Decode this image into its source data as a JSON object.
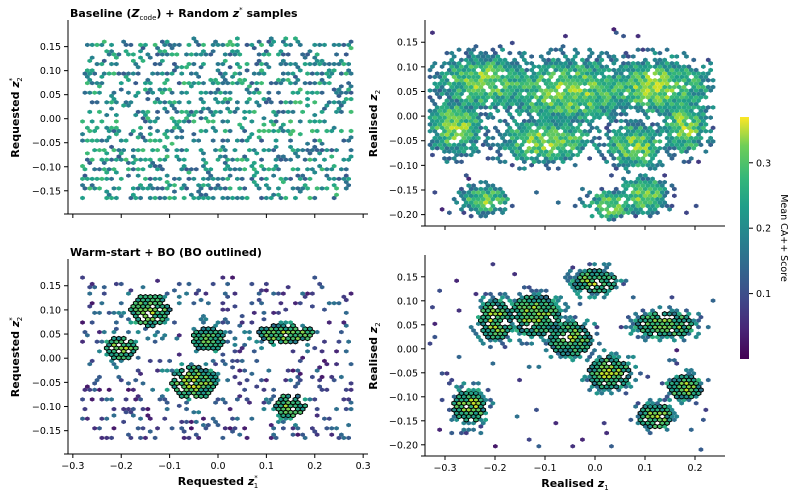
{
  "figure": {
    "colorbar": {
      "label": "Mean CA++ Score",
      "range": [
        0.0,
        0.37
      ],
      "ticks": [
        0.1,
        0.2,
        0.3
      ],
      "tick_labels": [
        "0.1",
        "0.2",
        "0.3"
      ],
      "colormap": "viridis"
    }
  },
  "chart_data": [
    {
      "id": "top-left",
      "type": "heatmap",
      "subtype": "hexbin",
      "title": "Baseline (Z_code) + Random z* samples",
      "title_parts": {
        "prefix": "Baseline (",
        "var": "Z",
        "sub": "code",
        "mid": ") + Random ",
        "var2": "z",
        "sup": "*",
        "suffix": " samples"
      },
      "xlabel": "",
      "ylabel": "Requested z2*",
      "ylabel_parts": {
        "base": "Requested ",
        "var": "z",
        "sub": "2",
        "sup": "*"
      },
      "xlim": [
        -0.31,
        0.31
      ],
      "ylim": [
        -0.19,
        0.195
      ],
      "xticks": [
        -0.3,
        -0.2,
        -0.1,
        0.0,
        0.1,
        0.2,
        0.3
      ],
      "xtick_labels_shown": false,
      "yticks": [
        -0.15,
        -0.1,
        -0.05,
        0.0,
        0.05,
        0.1,
        0.15
      ],
      "ytick_labels": [
        "−0.15",
        "−0.10",
        "−0.05",
        "0.00",
        "0.05",
        "0.10",
        "0.15"
      ],
      "distribution": "sparse grid of hexagonal bins over x∈[-0.28,0.28], y∈[-0.16,0.17]; mean score mostly 0.05–0.25",
      "bo_outlined": false
    },
    {
      "id": "top-right",
      "type": "heatmap",
      "subtype": "hexbin",
      "title": "",
      "xlabel": "",
      "ylabel": "Realised z2",
      "ylabel_parts": {
        "base": "Realised ",
        "var": "z",
        "sub": "2"
      },
      "xlim": [
        -0.34,
        0.26
      ],
      "ylim": [
        -0.215,
        0.185
      ],
      "xticks": [
        -0.3,
        -0.2,
        -0.1,
        0.0,
        0.1,
        0.2
      ],
      "xtick_labels_shown": false,
      "yticks": [
        -0.2,
        -0.15,
        -0.1,
        -0.05,
        0.0,
        0.05,
        0.1,
        0.15
      ],
      "ytick_labels": [
        "−0.20",
        "−0.15",
        "−0.10",
        "−0.05",
        "0.00",
        "0.05",
        "0.10",
        "0.15"
      ],
      "distribution": "dense blob of realised points spanning x∈[-0.33,0.24], y∈[-0.21,0.18]",
      "bo_outlined": false
    },
    {
      "id": "bottom-left",
      "type": "heatmap",
      "subtype": "hexbin",
      "title": "Warm-start + BO (BO outlined)",
      "xlabel": "Requested z1*",
      "xlabel_parts": {
        "base": "Requested ",
        "var": "z",
        "sub": "1",
        "sup": "*"
      },
      "ylabel": "Requested z2*",
      "ylabel_parts": {
        "base": "Requested ",
        "var": "z",
        "sub": "2",
        "sup": "*"
      },
      "xlim": [
        -0.31,
        0.31
      ],
      "ylim": [
        -0.19,
        0.195
      ],
      "xticks": [
        -0.3,
        -0.2,
        -0.1,
        0.0,
        0.1,
        0.2,
        0.3
      ],
      "xtick_labels": [
        "−0.3",
        "−0.2",
        "−0.1",
        "0.0",
        "0.1",
        "0.2",
        "0.3"
      ],
      "yticks": [
        -0.15,
        -0.1,
        -0.05,
        0.0,
        0.05,
        0.1,
        0.15
      ],
      "ytick_labels": [
        "−0.15",
        "−0.10",
        "−0.05",
        "0.00",
        "0.05",
        "0.10",
        "0.15"
      ],
      "distribution": "sparse background bins plus outlined BO clusters near (-0.15,0.10), (0.12,0.05), (-0.05,-0.05)",
      "bo_outlined": true
    },
    {
      "id": "bottom-right",
      "type": "heatmap",
      "subtype": "hexbin",
      "title": "",
      "xlabel": "Realised z1",
      "xlabel_parts": {
        "base": "Realised ",
        "var": "z",
        "sub": "1"
      },
      "ylabel": "Realised z2",
      "ylabel_parts": {
        "base": "Realised ",
        "var": "z",
        "sub": "2"
      },
      "xlim": [
        -0.34,
        0.26
      ],
      "ylim": [
        -0.215,
        0.185
      ],
      "xticks": [
        -0.3,
        -0.2,
        -0.1,
        0.0,
        0.1,
        0.2
      ],
      "xtick_labels": [
        "−0.3",
        "−0.2",
        "−0.1",
        "0.0",
        "0.1",
        "0.2"
      ],
      "yticks": [
        -0.2,
        -0.15,
        -0.1,
        -0.05,
        0.0,
        0.05,
        0.1,
        0.15
      ],
      "ytick_labels": [
        "−0.20",
        "−0.15",
        "−0.10",
        "−0.05",
        "0.00",
        "0.05",
        "0.10",
        "0.15"
      ],
      "distribution": "realised points clustered with outlined BO regions around (0.13,0.05), (-0.12,0.08), (0.0,-0.05)",
      "bo_outlined": true
    }
  ]
}
